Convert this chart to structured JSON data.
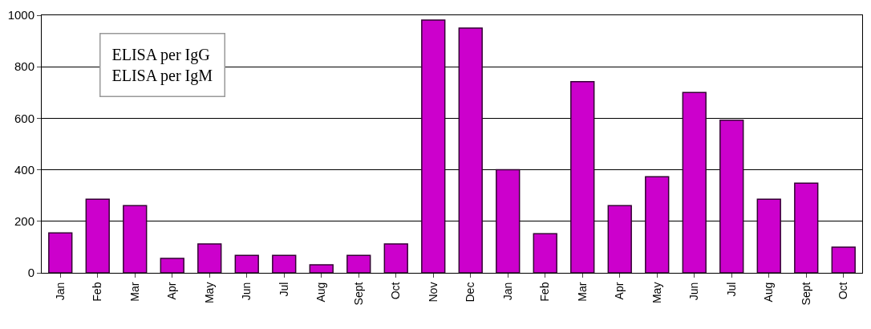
{
  "chart_data": {
    "type": "bar",
    "categories": [
      "Jan",
      "Feb",
      "Mar",
      "Apr",
      "May",
      "Jun",
      "Jul",
      "Aug",
      "Sept",
      "Oct",
      "Nov",
      "Dec",
      "Jan",
      "Feb",
      "Mar",
      "Apr",
      "May",
      "Jun",
      "Jul",
      "Aug",
      "Sept",
      "Oct"
    ],
    "values": [
      155,
      286,
      261,
      56,
      112,
      68,
      68,
      31,
      68,
      112,
      981,
      950,
      400,
      152,
      742,
      261,
      373,
      700,
      593,
      286,
      348,
      100
    ],
    "color": "#cc00cc",
    "ylim": [
      0,
      1000
    ],
    "yticks": [
      0,
      200,
      400,
      600,
      800,
      1000
    ],
    "grid": "y",
    "annotations": [
      "ELISA per IgG",
      "ELISA per IgM"
    ]
  }
}
